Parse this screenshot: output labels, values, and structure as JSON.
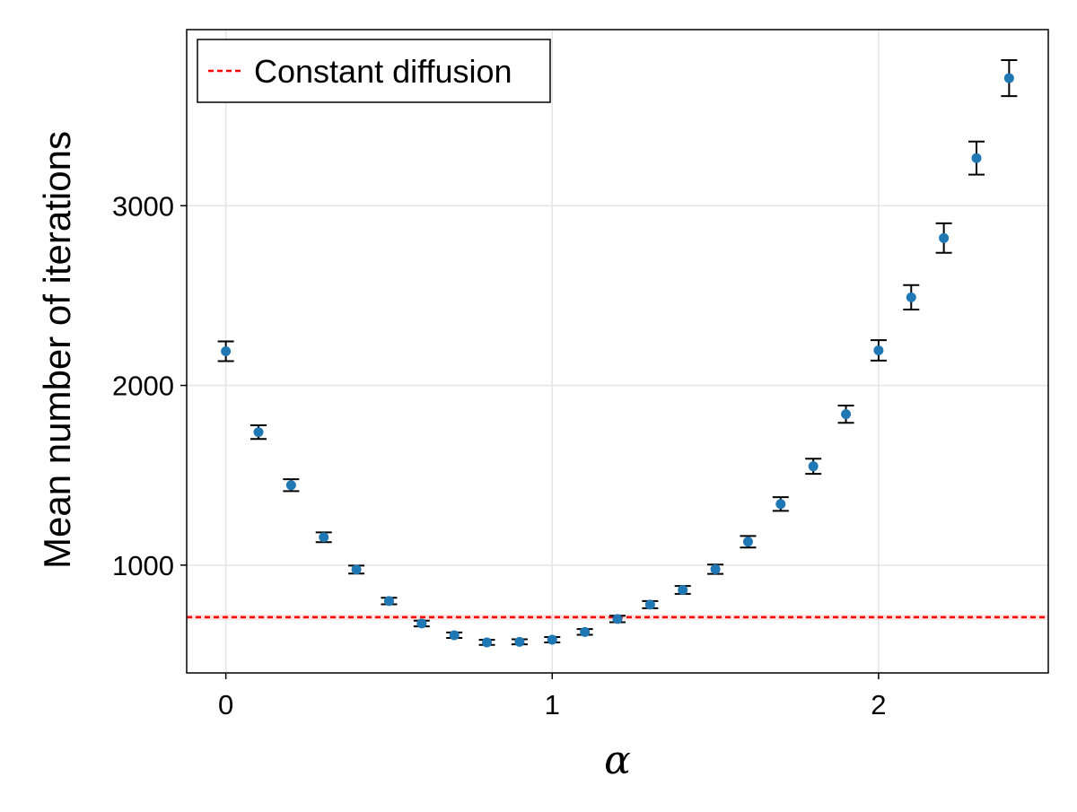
{
  "chart_data": {
    "type": "scatter",
    "title": "",
    "xlabel": "α",
    "ylabel": "Mean number of iterations",
    "xlim": [
      -0.12,
      2.52
    ],
    "ylim": [
      400,
      3980
    ],
    "x_ticks": [
      0,
      1,
      2
    ],
    "y_ticks": [
      1000,
      2000,
      3000
    ],
    "grid": true,
    "legend_position": "top-left",
    "legend": [
      {
        "label": "Constant diffusion",
        "style": "dashed-line",
        "color": "#ff0000"
      }
    ],
    "reference_line": {
      "label": "Constant diffusion",
      "y": 710,
      "band": [
        695,
        725
      ],
      "color": "#ff0000"
    },
    "series": [
      {
        "marker_color": "#1f77b4",
        "errorbar_color": "#000000",
        "x": [
          0.0,
          0.1,
          0.2,
          0.3,
          0.4,
          0.5,
          0.6,
          0.7,
          0.8,
          0.9,
          1.0,
          1.1,
          1.2,
          1.3,
          1.4,
          1.5,
          1.6,
          1.7,
          1.8,
          1.9,
          2.0,
          2.1,
          2.2,
          2.3,
          2.4
        ],
        "y": [
          2190,
          1740,
          1445,
          1155,
          975,
          800,
          675,
          610,
          570,
          573,
          585,
          628,
          700,
          780,
          862,
          977,
          1130,
          1340,
          1550,
          1840,
          2195,
          2490,
          2820,
          3265,
          3710
        ],
        "err": [
          55,
          38,
          33,
          27,
          22,
          18,
          16,
          15,
          14,
          14,
          15,
          16,
          18,
          20,
          22,
          26,
          32,
          38,
          42,
          48,
          57,
          68,
          82,
          92,
          100
        ]
      }
    ]
  }
}
